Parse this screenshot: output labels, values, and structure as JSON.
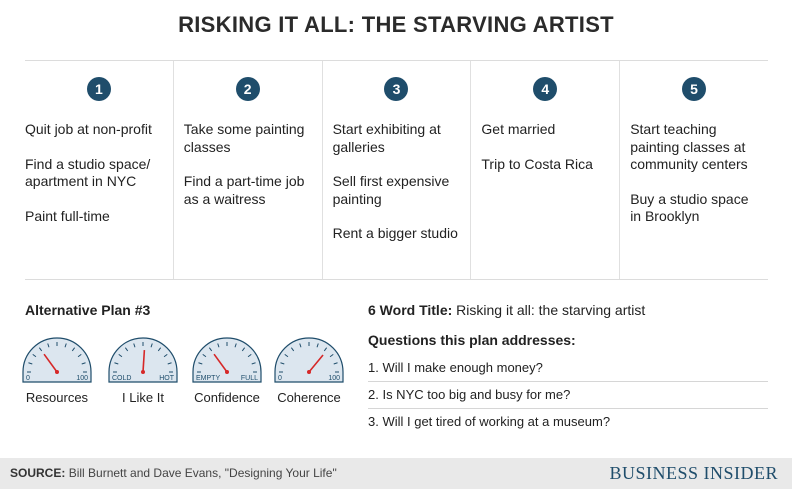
{
  "title": "RISKING IT ALL: THE STARVING ARTIST",
  "steps": [
    {
      "num": "1",
      "items": [
        "Quit job at non-profit",
        "Find a studio space/ apartment in NYC",
        "Paint full-time"
      ]
    },
    {
      "num": "2",
      "items": [
        "Take some painting classes",
        "Find a part-time job as a waitress"
      ]
    },
    {
      "num": "3",
      "items": [
        "Start exhibiting at galleries",
        "Sell first expensive painting",
        "Rent a bigger studio"
      ]
    },
    {
      "num": "4",
      "items": [
        "Get married",
        "Trip to Costa Rica"
      ]
    },
    {
      "num": "5",
      "items": [
        "Start teaching painting classes at community centers",
        "Buy a studio space in Brooklyn"
      ]
    }
  ],
  "plan_label": "Alternative Plan #3",
  "gauges": [
    {
      "caption": "Resources",
      "low": "0",
      "high": "100",
      "level": 0.3
    },
    {
      "caption": "I Like It",
      "low": "COLD",
      "high": "HOT",
      "level": 0.52
    },
    {
      "caption": "Confidence",
      "low": "EMPTY",
      "high": "FULL",
      "level": 0.3
    },
    {
      "caption": "Coherence",
      "low": "0",
      "high": "100",
      "level": 0.72
    }
  ],
  "six_word_title_label": "6 Word Title:",
  "six_word_title_value": "Risking it all: the starving artist",
  "questions_heading": "Questions this plan addresses:",
  "questions": [
    "1. Will I make enough money?",
    "2. Is NYC too big and busy for me?",
    "3. Will I get tired of working at a museum?"
  ],
  "source_label": "SOURCE:",
  "source_text": "Bill Burnett and Dave Evans, \"Designing Your Life\"",
  "brand": "BUSINESS INSIDER",
  "colors": {
    "accent": "#1f4d6b",
    "needle": "#d62828",
    "gauge_fill": "#dce6ef"
  }
}
